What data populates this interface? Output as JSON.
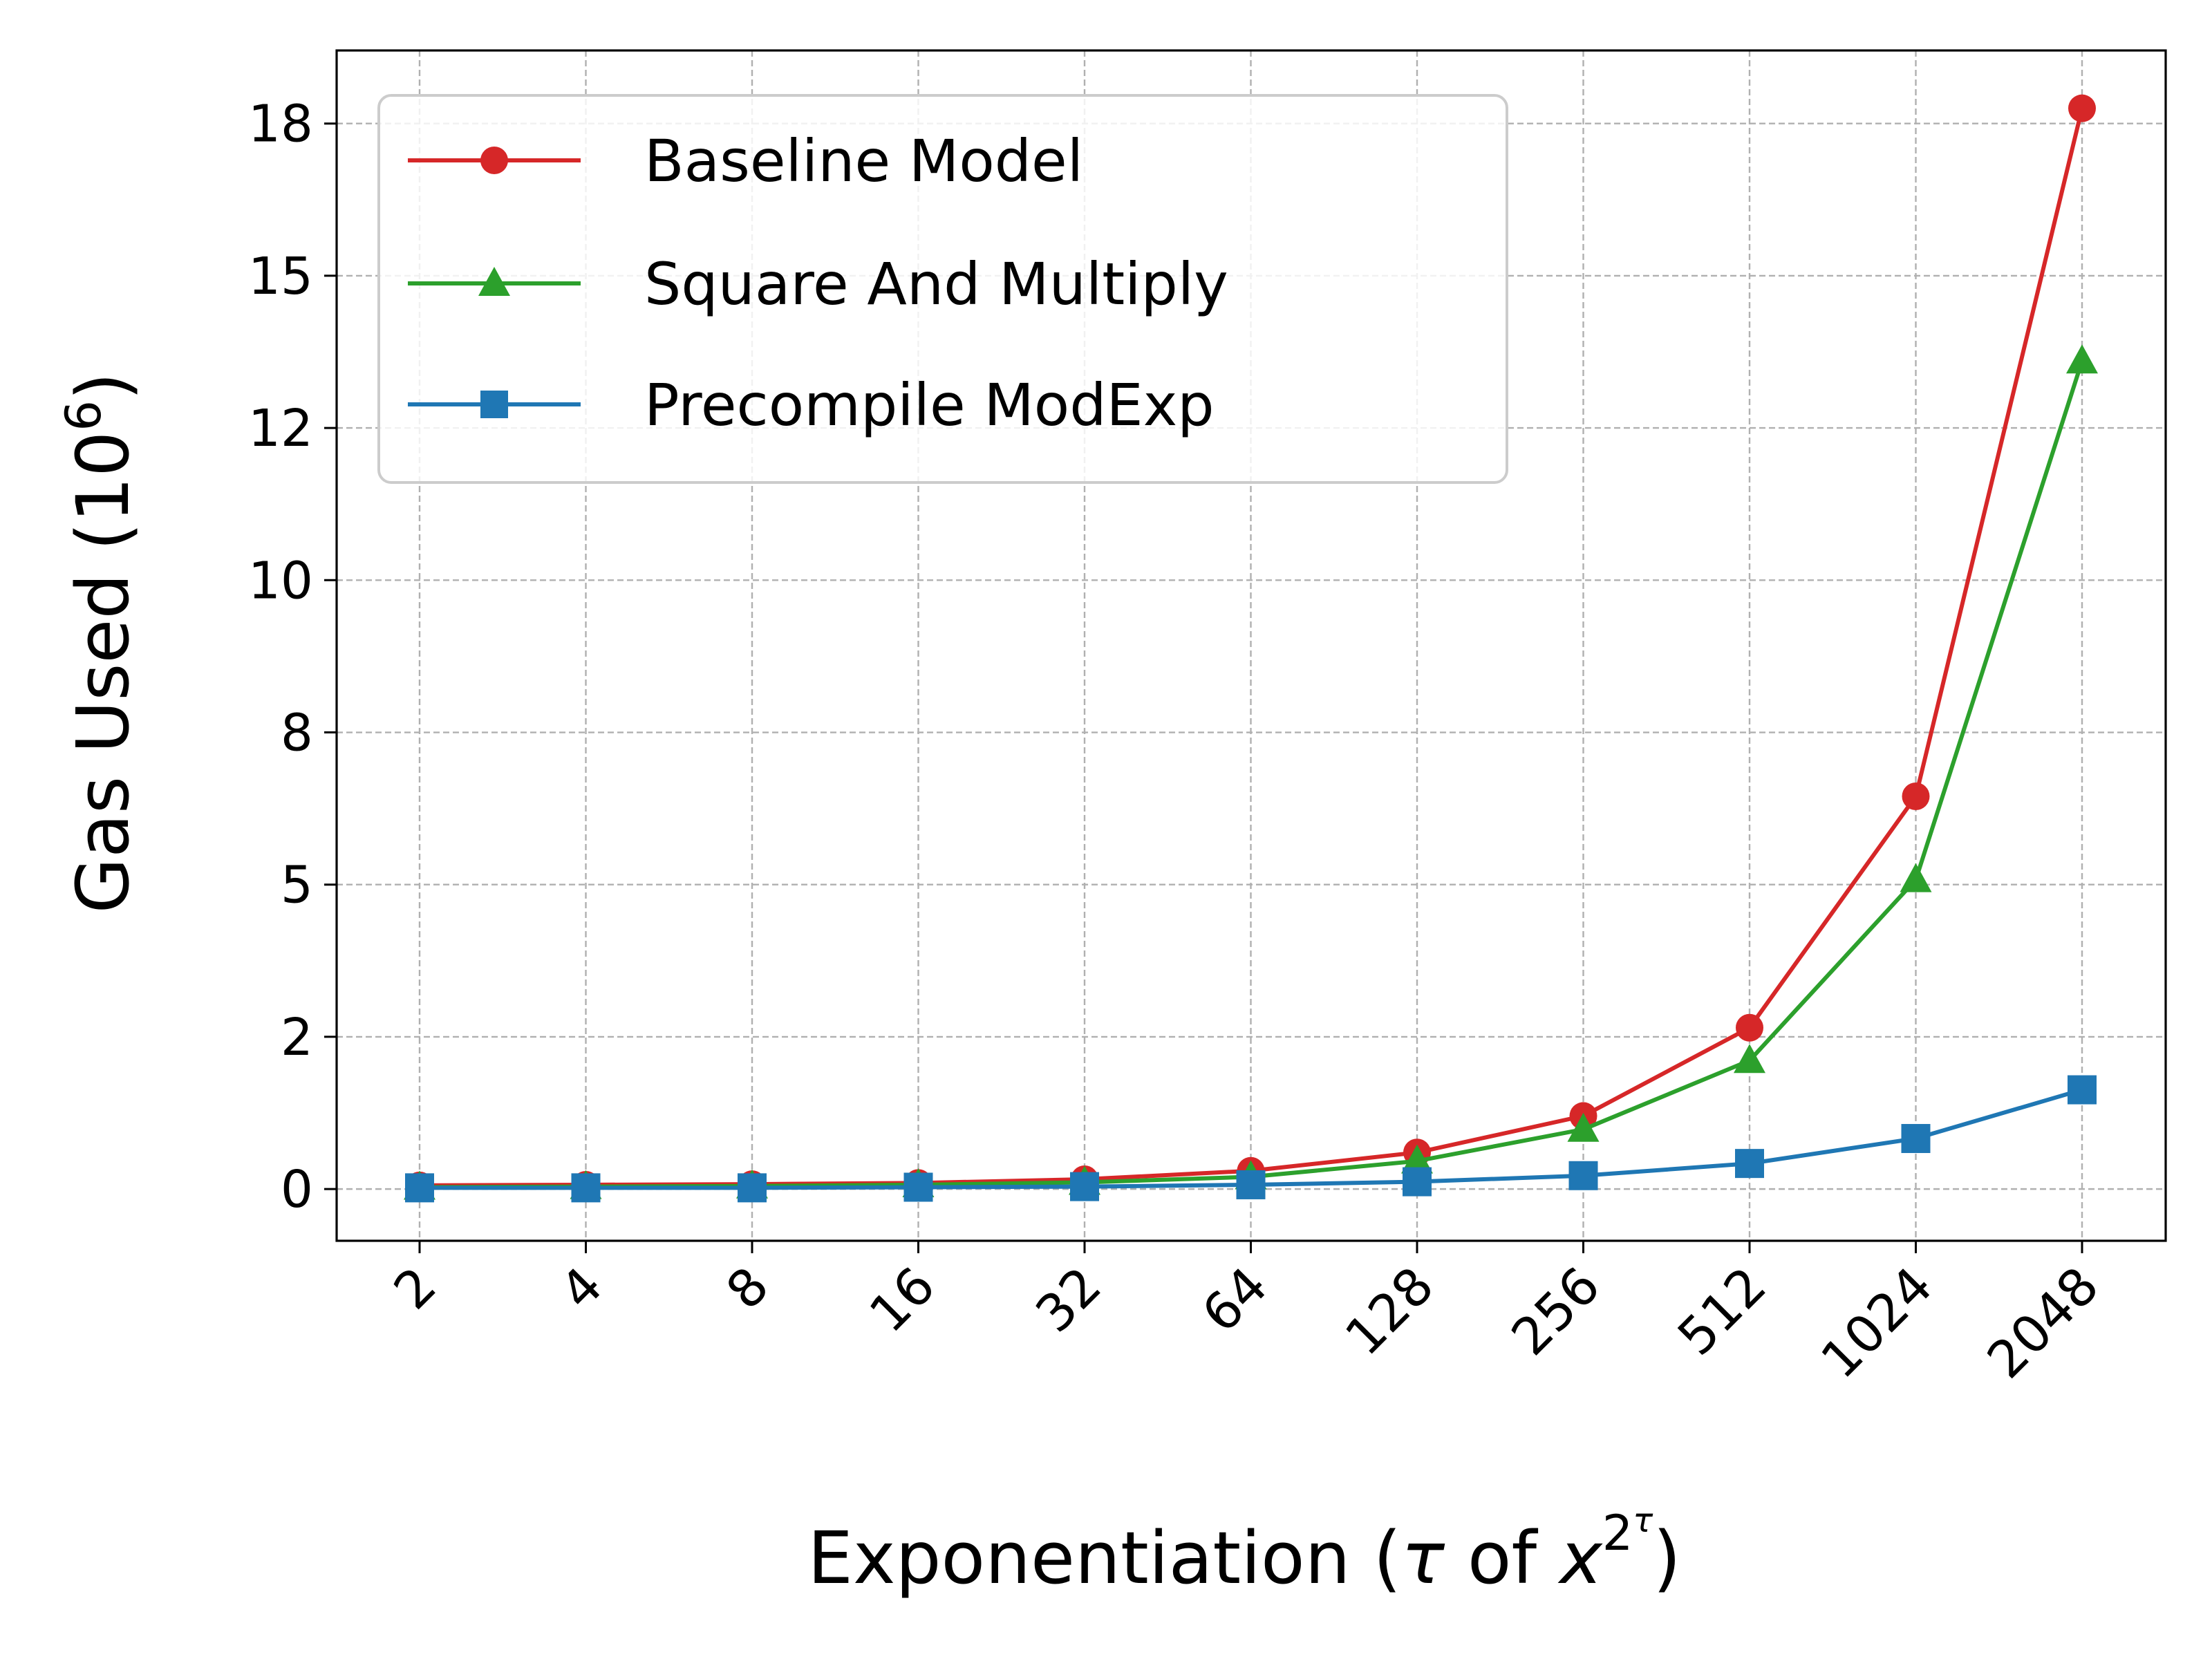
{
  "chart_data": {
    "type": "line",
    "categories": [
      "2",
      "4",
      "8",
      "16",
      "32",
      "64",
      "128",
      "256",
      "512",
      "1024",
      "2048"
    ],
    "xlabel": {
      "main": "Exponentiation (",
      "tau": "τ",
      "of": " of ",
      "x": "x",
      "sup_base": "2",
      "sup_tau": "τ",
      "close": ")"
    },
    "ylabel": {
      "main": "Gas Used (10",
      "sup": "6",
      "close": ")"
    },
    "y_ticks": [
      0,
      2.5,
      5,
      7.5,
      10,
      12.5,
      15,
      17.5
    ],
    "y_tick_labels": [
      "0",
      "2",
      "5",
      "8",
      "10",
      "12",
      "15",
      "18"
    ],
    "ylim": [
      -0.85,
      18.7
    ],
    "grid": true,
    "legend_position": "top-left",
    "series": [
      {
        "name": "Baseline Model",
        "color": "#d62728",
        "marker": "circle",
        "values": [
          0.06,
          0.07,
          0.08,
          0.1,
          0.16,
          0.3,
          0.6,
          1.2,
          2.65,
          6.45,
          17.75
        ]
      },
      {
        "name": "Square And Multiply",
        "color": "#2ca02c",
        "marker": "triangle",
        "values": [
          0.03,
          0.04,
          0.05,
          0.07,
          0.11,
          0.2,
          0.46,
          0.98,
          2.11,
          5.08,
          13.6
        ]
      },
      {
        "name": "Precompile ModExp",
        "color": "#1f77b4",
        "marker": "square",
        "values": [
          0.02,
          0.02,
          0.02,
          0.03,
          0.04,
          0.07,
          0.12,
          0.22,
          0.42,
          0.83,
          1.63
        ]
      }
    ]
  }
}
